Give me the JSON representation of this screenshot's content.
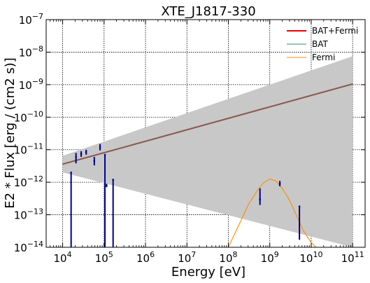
{
  "chart_data": {
    "type": "line",
    "title": "XTE_J1817-330",
    "xlabel": "Energy [eV]",
    "ylabel": "E2 * Flux [erg / (cm2 s)]",
    "xscale": "log",
    "yscale": "log",
    "xlim": [
      4000,
      200000000000
    ],
    "ylim": [
      1e-14,
      1e-07
    ],
    "grid": true,
    "legend_position": "top-right",
    "x_ticks": [
      {
        "value": 10000,
        "base": "10",
        "exp": "4"
      },
      {
        "value": 100000,
        "base": "10",
        "exp": "5"
      },
      {
        "value": 1000000,
        "base": "10",
        "exp": "6"
      },
      {
        "value": 10000000,
        "base": "10",
        "exp": "7"
      },
      {
        "value": 100000000,
        "base": "10",
        "exp": "8"
      },
      {
        "value": 1000000000,
        "base": "10",
        "exp": "9"
      },
      {
        "value": 10000000000,
        "base": "10",
        "exp": "10"
      },
      {
        "value": 100000000000,
        "base": "10",
        "exp": "11"
      }
    ],
    "y_ticks": [
      {
        "value": 1e-14,
        "base": "10",
        "exp": "−14"
      },
      {
        "value": 1e-13,
        "base": "10",
        "exp": "−13"
      },
      {
        "value": 1e-12,
        "base": "10",
        "exp": "−12"
      },
      {
        "value": 1e-11,
        "base": "10",
        "exp": "−11"
      },
      {
        "value": 1e-10,
        "base": "10",
        "exp": "−10"
      },
      {
        "value": 1e-09,
        "base": "10",
        "exp": "−9"
      },
      {
        "value": 1e-08,
        "base": "10",
        "exp": "−8"
      },
      {
        "value": 1e-07,
        "base": "10",
        "exp": "−7"
      }
    ],
    "band": {
      "name": "uncertainty band",
      "color": "#c8c8c8",
      "x": [
        10000,
        100000000000
      ],
      "upper": [
        6.5e-12,
        7.5e-09
      ],
      "lower": [
        2e-12,
        1e-14
      ]
    },
    "series": [
      {
        "name": "BAT+Fermi",
        "color": "#e8000b",
        "x": [
          10000,
          100000000000
        ],
        "y": [
          3.6e-12,
          1.05e-09
        ]
      },
      {
        "name": "BAT",
        "color": "#2e8b57",
        "x": [
          10000,
          100000000000
        ],
        "y": [
          3.6e-12,
          1.05e-09
        ]
      },
      {
        "name": "Fermi",
        "color": "#ff8c00",
        "x": [
          100000000,
          150000000,
          200000000,
          300000000,
          500000000,
          700000000,
          1000000000,
          1400000000,
          2000000000,
          3000000000,
          4500000000,
          6500000000,
          10000000000,
          13000000000
        ],
        "y": [
          1e-14,
          3e-14,
          6.5e-14,
          2e-13,
          5.5e-13,
          9.5e-13,
          1.25e-12,
          1.1e-12,
          6.5e-13,
          2.8e-13,
          9e-14,
          3.2e-14,
          1.4e-14,
          1e-14
        ]
      }
    ],
    "overlay_line": {
      "color": "#8b5a50",
      "x": [
        10000,
        100000000000
      ],
      "y": [
        3.6e-12,
        1.05e-09
      ]
    },
    "points": {
      "color": "#00008b",
      "items": [
        {
          "x": 16000,
          "y": 2e-12,
          "ylo": 1e-14,
          "yhi": 2e-12
        },
        {
          "x": 21000,
          "y": 6e-12,
          "ylo": 3.8e-12,
          "yhi": 8e-12
        },
        {
          "x": 28000,
          "y": 7.5e-12,
          "ylo": 6e-12,
          "yhi": 9e-12
        },
        {
          "x": 37000,
          "y": 8.5e-12,
          "ylo": 7e-12,
          "yhi": 1e-11
        },
        {
          "x": 58000,
          "y": 4.5e-12,
          "ylo": 3.3e-12,
          "yhi": 6e-12
        },
        {
          "x": 80000,
          "y": 1.2e-11,
          "ylo": 9.5e-12,
          "yhi": 1.5e-11
        },
        {
          "x": 105000,
          "y": 7e-12,
          "ylo": 1e-14,
          "yhi": 7e-12
        },
        {
          "x": 115000,
          "y": 8e-13,
          "ylo": 7e-13,
          "yhi": 9e-13
        },
        {
          "x": 165000,
          "y": 1.2e-12,
          "ylo": 1e-14,
          "yhi": 1.2e-12
        },
        {
          "x": 580000000,
          "y": 3e-13,
          "ylo": 2e-13,
          "yhi": 6.5e-13
        },
        {
          "x": 1750000000,
          "y": 9e-13,
          "ylo": 7.5e-13,
          "yhi": 1.1e-12
        },
        {
          "x": 5200000000,
          "y": 1.8e-13,
          "ylo": 1.7e-14,
          "yhi": 1.8e-13
        }
      ]
    }
  }
}
